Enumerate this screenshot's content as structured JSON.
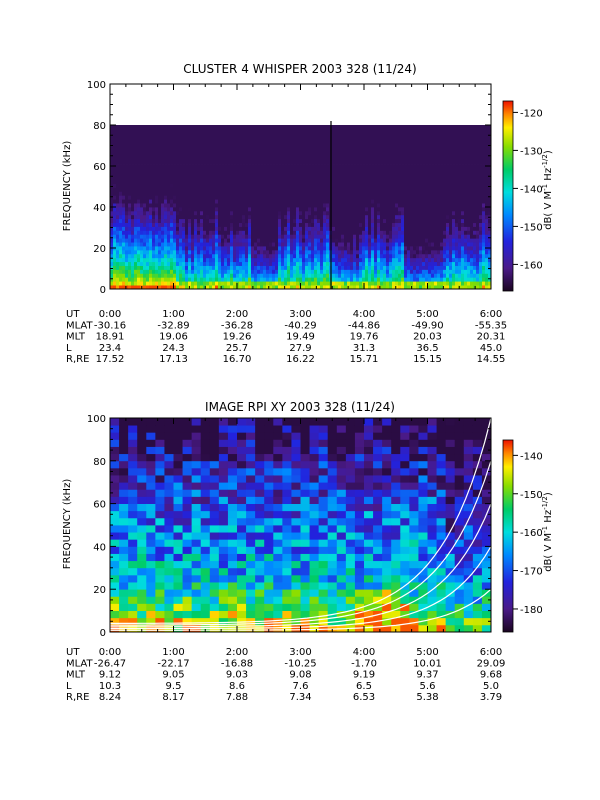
{
  "chart_data": [
    {
      "type": "heatmap",
      "title": "CLUSTER 4 WHISPER 2003 328 (11/24)",
      "ylabel": "FREQUENCY (kHz)",
      "ylim": [
        0,
        100
      ],
      "yticks": [
        "0",
        "20",
        "40",
        "60",
        "80",
        "100"
      ],
      "xlim_hours": [
        0,
        6
      ],
      "xticks": [
        "0:00",
        "1:00",
        "2:00",
        "3:00",
        "4:00",
        "5:00",
        "6:00"
      ],
      "data_ceiling_khz": 80,
      "colorbar": {
        "label": "dB( V M",
        "label_sup1": "-1",
        "label_mid": " Hz",
        "label_sup2": "-1/2",
        "label_end": ")",
        "ticks": [
          "-120",
          "-130",
          "-140",
          "-150",
          "-160"
        ],
        "tick_values": [
          -120,
          -130,
          -140,
          -150,
          -160
        ],
        "range": [
          -167,
          -117
        ]
      },
      "ephemeris": {
        "labels": [
          "UT",
          "MLAT",
          "MLT",
          "L",
          "R,RE"
        ],
        "columns": [
          [
            "0:00",
            "-30.16",
            "18.91",
            "23.4",
            "17.52"
          ],
          [
            "1:00",
            "-32.89",
            "19.06",
            "24.3",
            "17.13"
          ],
          [
            "2:00",
            "-36.28",
            "19.26",
            "25.7",
            "16.70"
          ],
          [
            "3:00",
            "-40.29",
            "19.49",
            "27.9",
            "16.22"
          ],
          [
            "4:00",
            "-44.86",
            "19.76",
            "31.3",
            "15.71"
          ],
          [
            "5:00",
            "-49.90",
            "20.03",
            "36.5",
            "15.15"
          ],
          [
            "6:00",
            "-55.35",
            "20.31",
            "45.0",
            "14.55"
          ]
        ]
      },
      "vertical_marker_hour": 3.47
    },
    {
      "type": "heatmap",
      "title": "IMAGE RPI XY 2003 328 (11/24)",
      "ylabel": "FREQUENCY (kHz)",
      "ylim": [
        0,
        100
      ],
      "yticks": [
        "0",
        "20",
        "40",
        "60",
        "80",
        "100"
      ],
      "xlim_hours": [
        0,
        6
      ],
      "xticks": [
        "0:00",
        "1:00",
        "2:00",
        "3:00",
        "4:00",
        "5:00",
        "6:00"
      ],
      "colorbar": {
        "label": "dB( V M",
        "label_sup1": "-1",
        "label_mid": " Hz",
        "label_sup2": "-1/2",
        "label_end": ")",
        "ticks": [
          "-140",
          "-150",
          "-160",
          "-170",
          "-180"
        ],
        "tick_values": [
          -140,
          -150,
          -160,
          -170,
          -180
        ],
        "range": [
          -186,
          -136
        ]
      },
      "ephemeris": {
        "labels": [
          "UT",
          "MLAT",
          "MLT",
          "L",
          "R,RE"
        ],
        "columns": [
          [
            "0:00",
            "-26.47",
            "9.12",
            "10.3",
            "8.24"
          ],
          [
            "1:00",
            "-22.17",
            "9.05",
            "9.5",
            "8.17"
          ],
          [
            "2:00",
            "-16.88",
            "9.03",
            "8.6",
            "7.88"
          ],
          [
            "3:00",
            "-10.25",
            "9.08",
            "7.6",
            "7.34"
          ],
          [
            "4:00",
            "-1.70",
            "9.19",
            "6.5",
            "6.53"
          ],
          [
            "5:00",
            "10.01",
            "9.37",
            "5.6",
            "5.38"
          ],
          [
            "6:00",
            "29.09",
            "9.68",
            "5.0",
            "3.79"
          ]
        ]
      },
      "overlay_curves": [
        {
          "name": "",
          "end_khz": 100,
          "growth": 1.25
        },
        {
          "name": "",
          "end_khz": 80,
          "growth": 1.25
        },
        {
          "name": "",
          "end_khz": 60,
          "growth": 1.3
        },
        {
          "name": "",
          "end_khz": 40,
          "growth": 1.35
        },
        {
          "name": "",
          "end_khz": 20,
          "growth": 1.4
        }
      ]
    }
  ]
}
